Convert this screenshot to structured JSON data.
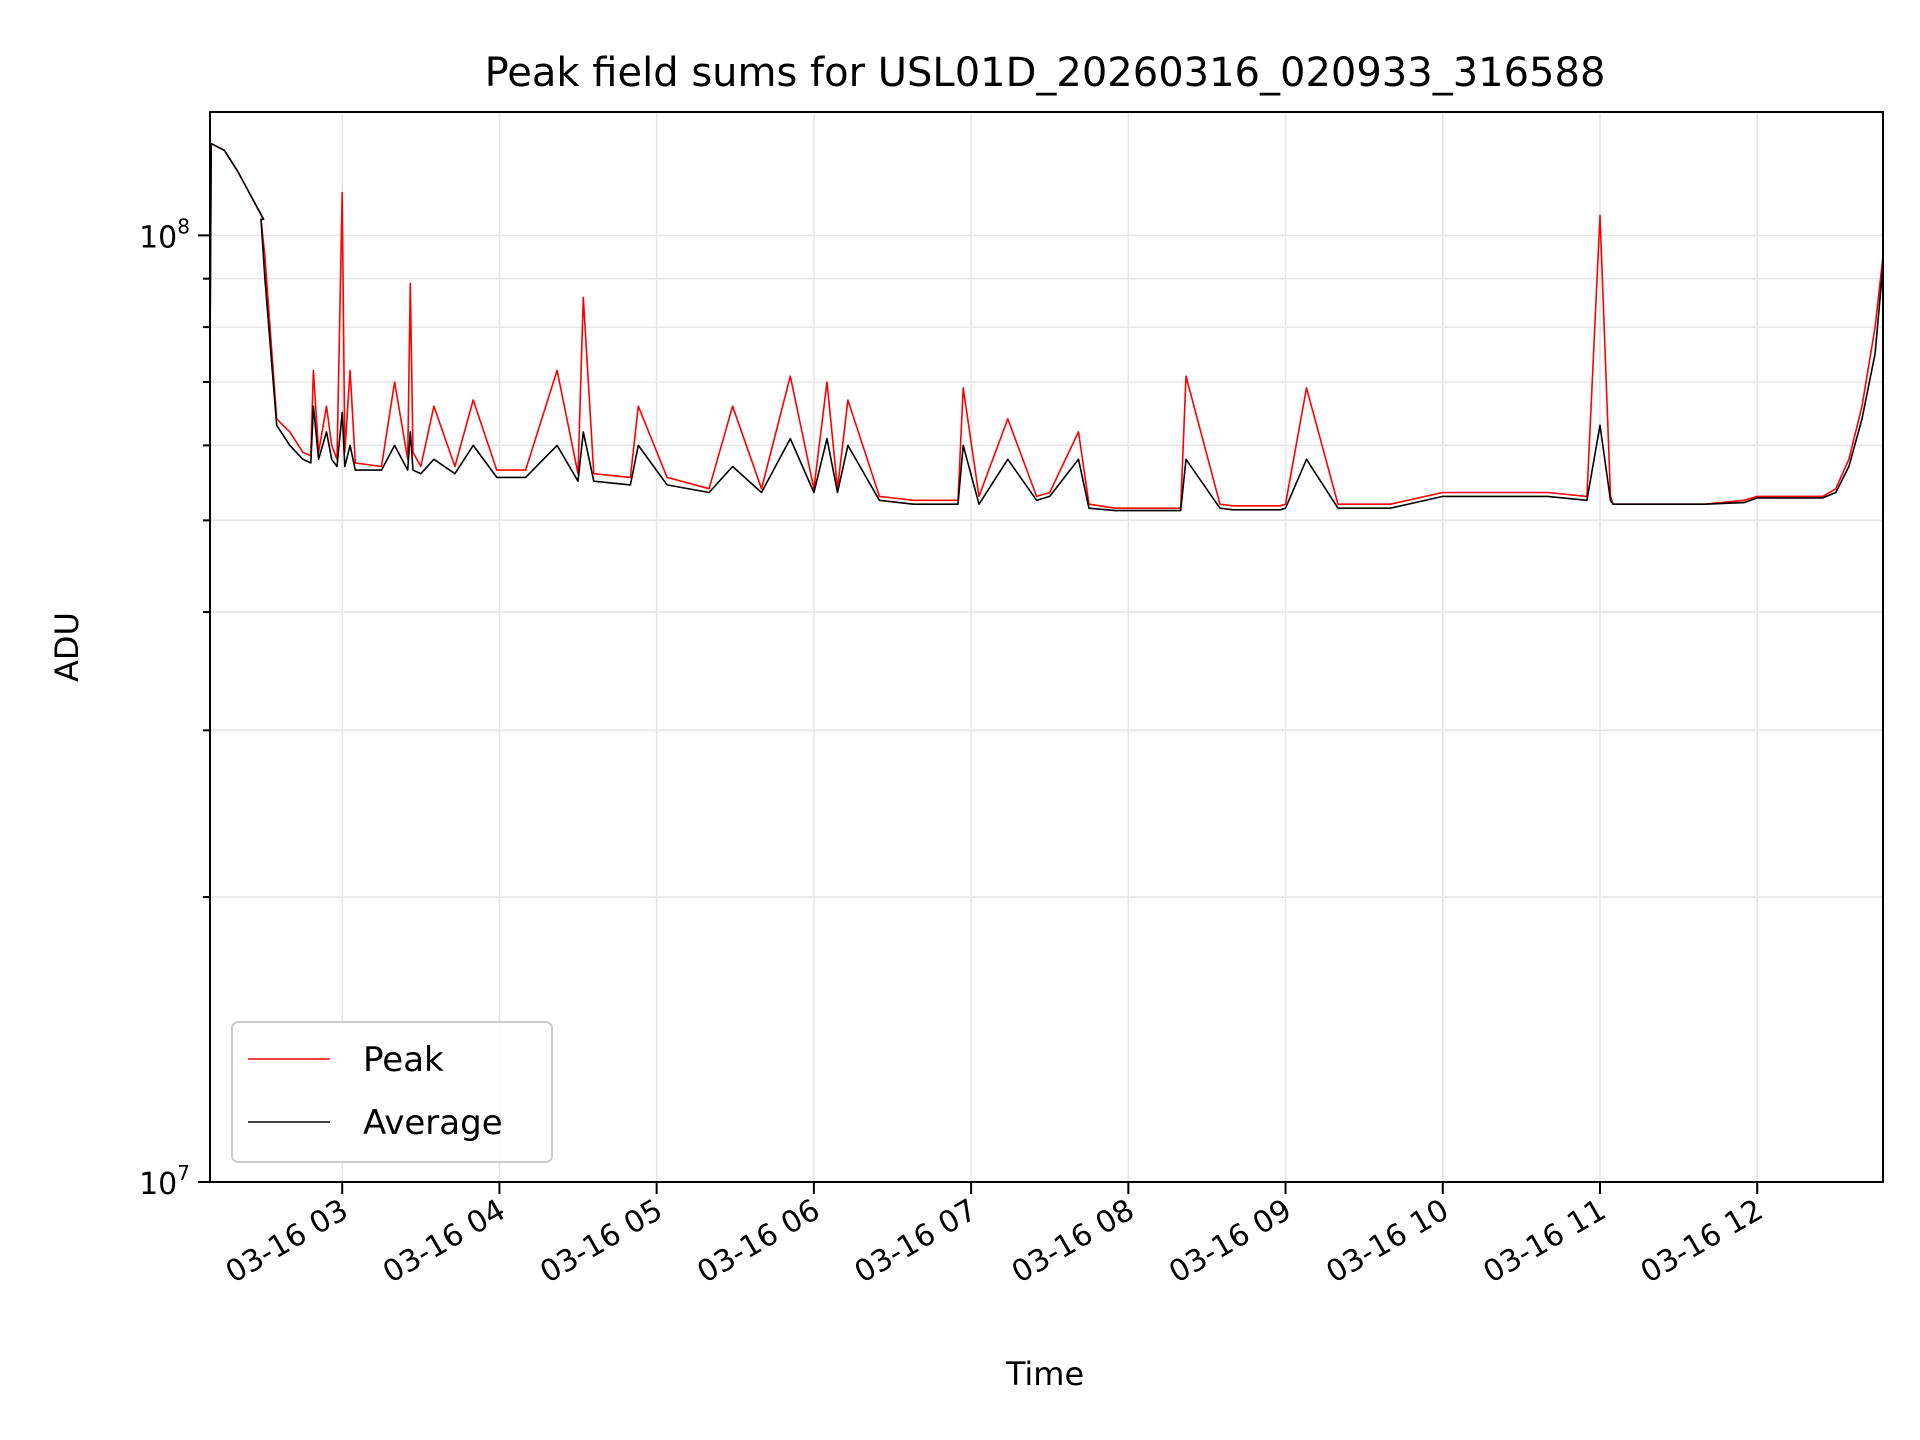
{
  "chart_data": {
    "type": "line",
    "title": "Peak field sums for USL01D_20260316_020933_316588",
    "xlabel": "Time",
    "ylabel": "ADU",
    "yscale": "log",
    "ylim": [
      10000000,
      135000000
    ],
    "xlim": [
      "2026-03-16 02:09:33",
      "2026-03-16 12:48:00"
    ],
    "x_ticks": [
      {
        "value": "2026-03-16 03:00",
        "label": "03-16 03"
      },
      {
        "value": "2026-03-16 04:00",
        "label": "03-16 04"
      },
      {
        "value": "2026-03-16 05:00",
        "label": "03-16 05"
      },
      {
        "value": "2026-03-16 06:00",
        "label": "03-16 06"
      },
      {
        "value": "2026-03-16 07:00",
        "label": "03-16 07"
      },
      {
        "value": "2026-03-16 08:00",
        "label": "03-16 08"
      },
      {
        "value": "2026-03-16 09:00",
        "label": "03-16 09"
      },
      {
        "value": "2026-03-16 10:00",
        "label": "03-16 10"
      },
      {
        "value": "2026-03-16 11:00",
        "label": "03-16 11"
      },
      {
        "value": "2026-03-16 12:00",
        "label": "03-16 12"
      }
    ],
    "y_ticks": [
      {
        "value": 10000000,
        "base": "10",
        "exp": "7"
      },
      {
        "value": 100000000,
        "base": "10",
        "exp": "8"
      }
    ],
    "grid": true,
    "legend": "lower-left",
    "x": [
      "2026-03-16 02:09:33",
      "2026-03-16 02:10:00",
      "2026-03-16 02:15:00",
      "2026-03-16 02:20:00",
      "2026-03-16 02:30:00",
      "2026-03-16 02:29:00",
      "2026-03-16 02:30:30",
      "2026-03-16 02:35:00",
      "2026-03-16 02:40:00",
      "2026-03-16 02:45:00",
      "2026-03-16 02:48:00",
      "2026-03-16 02:49:00",
      "2026-03-16 02:51:00",
      "2026-03-16 02:54:00",
      "2026-03-16 02:56:00",
      "2026-03-16 02:58:00",
      "2026-03-16 03:00:00",
      "2026-03-16 03:01:00",
      "2026-03-16 03:03:00",
      "2026-03-16 03:05:00",
      "2026-03-16 03:15:00",
      "2026-03-16 03:20:00",
      "2026-03-16 03:25:00",
      "2026-03-16 03:26:00",
      "2026-03-16 03:27:00",
      "2026-03-16 03:30:00",
      "2026-03-16 03:35:00",
      "2026-03-16 03:43:00",
      "2026-03-16 03:50:00",
      "2026-03-16 03:59:00",
      "2026-03-16 04:10:00",
      "2026-03-16 04:22:00",
      "2026-03-16 04:30:00",
      "2026-03-16 04:32:00",
      "2026-03-16 04:36:00",
      "2026-03-16 04:50:00",
      "2026-03-16 04:53:00",
      "2026-03-16 05:04:00",
      "2026-03-16 05:20:00",
      "2026-03-16 05:29:00",
      "2026-03-16 05:40:00",
      "2026-03-16 05:51:00",
      "2026-03-16 06:00:00",
      "2026-03-16 06:05:00",
      "2026-03-16 06:09:00",
      "2026-03-16 06:13:00",
      "2026-03-16 06:25:00",
      "2026-03-16 06:38:00",
      "2026-03-16 06:45:00",
      "2026-03-16 06:55:00",
      "2026-03-16 06:57:00",
      "2026-03-16 07:03:00",
      "2026-03-16 07:14:00",
      "2026-03-16 07:25:00",
      "2026-03-16 07:30:00",
      "2026-03-16 07:41:00",
      "2026-03-16 07:45:00",
      "2026-03-16 07:55:00",
      "2026-03-16 08:05:00",
      "2026-03-16 08:20:00",
      "2026-03-16 08:22:00",
      "2026-03-16 08:35:00",
      "2026-03-16 08:40:00",
      "2026-03-16 08:58:00",
      "2026-03-16 09:00:00",
      "2026-03-16 09:08:00",
      "2026-03-16 09:20:00",
      "2026-03-16 09:40:00",
      "2026-03-16 10:00:00",
      "2026-03-16 10:20:00",
      "2026-03-16 10:40:00",
      "2026-03-16 10:55:00",
      "2026-03-16 11:00:00",
      "2026-03-16 11:04:00",
      "2026-03-16 11:05:00",
      "2026-03-16 11:20:00",
      "2026-03-16 11:40:00",
      "2026-03-16 11:55:00",
      "2026-03-16 12:00:00",
      "2026-03-16 12:15:00",
      "2026-03-16 12:25:00",
      "2026-03-16 12:30:00",
      "2026-03-16 12:35:00",
      "2026-03-16 12:40:00",
      "2026-03-16 12:45:00",
      "2026-03-16 12:48:00"
    ],
    "series": [
      {
        "name": "Peak",
        "color": "#ff0000",
        "values": [
          75000000,
          125000000,
          123000000,
          117000000,
          104000000,
          104000000,
          95000000,
          64000000,
          62000000,
          59000000,
          58500000,
          72000000,
          59000000,
          66000000,
          60000000,
          58000000,
          111000000,
          59000000,
          72000000,
          57500000,
          57000000,
          70000000,
          58000000,
          89000000,
          59000000,
          57000000,
          66000000,
          57000000,
          67000000,
          56500000,
          56500000,
          72000000,
          56000000,
          86000000,
          56000000,
          55500000,
          66000000,
          55500000,
          54000000,
          66000000,
          54000000,
          71000000,
          54000000,
          70000000,
          54000000,
          67000000,
          53000000,
          52500000,
          52500000,
          52500000,
          69000000,
          53000000,
          64000000,
          53000000,
          53500000,
          62000000,
          52000000,
          51500000,
          51500000,
          51500000,
          71000000,
          52000000,
          51800000,
          51800000,
          52000000,
          69000000,
          52000000,
          52000000,
          53500000,
          53500000,
          53500000,
          53000000,
          105000000,
          53000000,
          52000000,
          52000000,
          52000000,
          52500000,
          53000000,
          53000000,
          53000000,
          54000000,
          58000000,
          66000000,
          80000000,
          95000000
        ]
      },
      {
        "name": "Average",
        "color": "#000000",
        "values": [
          75000000,
          125000000,
          123000000,
          117000000,
          104000000,
          104000000,
          90000000,
          63000000,
          60000000,
          58000000,
          57500000,
          66000000,
          58000000,
          62000000,
          58000000,
          57000000,
          65000000,
          57000000,
          60000000,
          56500000,
          56500000,
          60000000,
          56500000,
          62000000,
          56500000,
          56000000,
          58000000,
          56000000,
          60000000,
          55500000,
          55500000,
          60000000,
          55000000,
          62000000,
          55000000,
          54500000,
          60000000,
          54500000,
          53500000,
          57000000,
          53500000,
          61000000,
          53500000,
          61000000,
          53500000,
          60000000,
          52500000,
          52000000,
          52000000,
          52000000,
          60000000,
          52000000,
          58000000,
          52500000,
          53000000,
          58000000,
          51500000,
          51200000,
          51200000,
          51200000,
          58000000,
          51500000,
          51300000,
          51300000,
          51500000,
          58000000,
          51500000,
          51500000,
          53000000,
          53000000,
          53000000,
          52500000,
          63000000,
          52500000,
          52000000,
          52000000,
          52000000,
          52200000,
          52800000,
          52800000,
          52800000,
          53500000,
          57000000,
          64000000,
          75000000,
          93000000
        ]
      }
    ]
  }
}
